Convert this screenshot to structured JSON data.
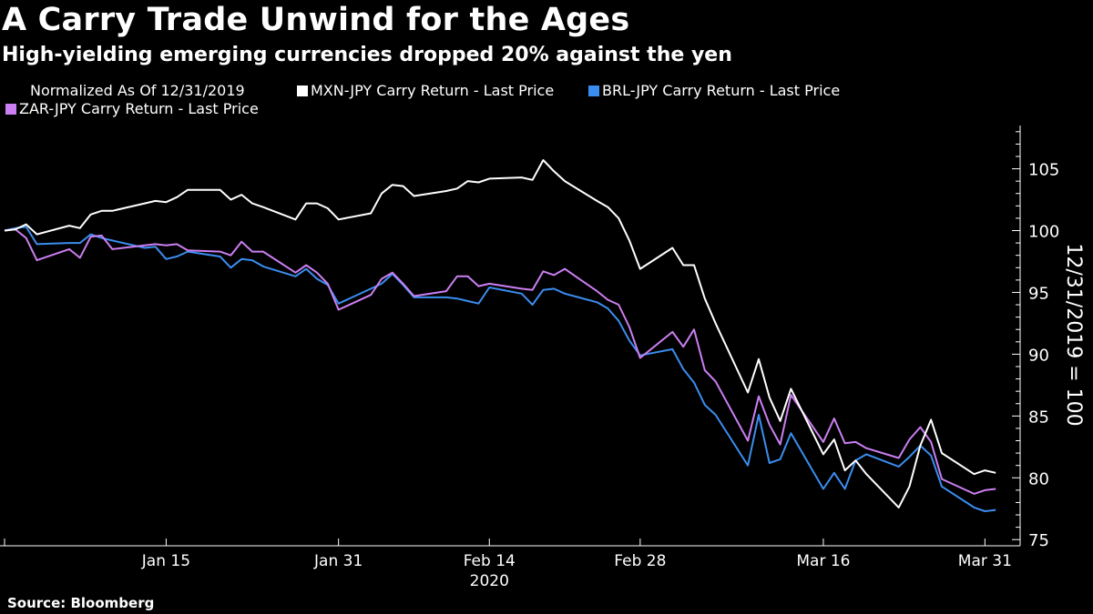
{
  "title": "A Carry Trade Unwind for the Ages",
  "subtitle": "High-yielding emerging currencies dropped 20% against the yen",
  "legend": {
    "note": "Normalized As Of 12/31/2019",
    "items": [
      {
        "label": "MXN-JPY Carry Return - Last Price",
        "color": "#ffffff"
      },
      {
        "label": "BRL-JPY Carry Return - Last Price",
        "color": "#3b8ef0"
      },
      {
        "label": "ZAR-JPY Carry Return - Last Price",
        "color": "#cc7ff2"
      }
    ]
  },
  "source": "Source: Bloomberg",
  "chart_data": {
    "type": "line",
    "x_tick_labels": [
      "Jan 15",
      "Jan 31",
      "Feb 14",
      "Feb 28",
      "Mar 16",
      "Mar 31"
    ],
    "x_tick_dates": [
      "2020-01-15",
      "2020-01-31",
      "2020-02-14",
      "2020-02-28",
      "2020-03-16",
      "2020-03-31"
    ],
    "x_year_label": "2020",
    "x_range": [
      "2019-12-31",
      "2020-04-02"
    ],
    "ylabel": "12/31/2019 = 100",
    "y_axis_side": "right",
    "ylim": [
      74.5,
      108.5
    ],
    "y_ticks": [
      75,
      80,
      85,
      90,
      95,
      100,
      105
    ],
    "grid": false,
    "legend_position": "top-left",
    "series": [
      {
        "name": "MXN-JPY Carry Return - Last Price",
        "color": "#ffffff",
        "points": [
          [
            "2019-12-31",
            100.0
          ],
          [
            "2020-01-01",
            100.1
          ],
          [
            "2020-01-02",
            100.5
          ],
          [
            "2020-01-03",
            99.7
          ],
          [
            "2020-01-06",
            100.4
          ],
          [
            "2020-01-07",
            100.2
          ],
          [
            "2020-01-08",
            101.3
          ],
          [
            "2020-01-09",
            101.6
          ],
          [
            "2020-01-10",
            101.6
          ],
          [
            "2020-01-13",
            102.2
          ],
          [
            "2020-01-14",
            102.4
          ],
          [
            "2020-01-15",
            102.3
          ],
          [
            "2020-01-16",
            102.7
          ],
          [
            "2020-01-17",
            103.3
          ],
          [
            "2020-01-20",
            103.3
          ],
          [
            "2020-01-21",
            102.5
          ],
          [
            "2020-01-22",
            102.9
          ],
          [
            "2020-01-23",
            102.2
          ],
          [
            "2020-01-24",
            101.9
          ],
          [
            "2020-01-27",
            100.9
          ],
          [
            "2020-01-28",
            102.2
          ],
          [
            "2020-01-29",
            102.2
          ],
          [
            "2020-01-30",
            101.8
          ],
          [
            "2020-01-31",
            100.9
          ],
          [
            "2020-02-03",
            101.4
          ],
          [
            "2020-02-04",
            103.0
          ],
          [
            "2020-02-05",
            103.7
          ],
          [
            "2020-02-06",
            103.6
          ],
          [
            "2020-02-07",
            102.8
          ],
          [
            "2020-02-10",
            103.2
          ],
          [
            "2020-02-11",
            103.4
          ],
          [
            "2020-02-12",
            104.0
          ],
          [
            "2020-02-13",
            103.9
          ],
          [
            "2020-02-14",
            104.2
          ],
          [
            "2020-02-17",
            104.3
          ],
          [
            "2020-02-18",
            104.1
          ],
          [
            "2020-02-19",
            105.7
          ],
          [
            "2020-02-20",
            104.8
          ],
          [
            "2020-02-21",
            104.0
          ],
          [
            "2020-02-24",
            102.4
          ],
          [
            "2020-02-25",
            101.9
          ],
          [
            "2020-02-26",
            101.0
          ],
          [
            "2020-02-27",
            99.2
          ],
          [
            "2020-02-28",
            96.9
          ],
          [
            "2020-03-02",
            98.6
          ],
          [
            "2020-03-03",
            97.2
          ],
          [
            "2020-03-04",
            97.2
          ],
          [
            "2020-03-05",
            94.5
          ],
          [
            "2020-03-06",
            92.5
          ],
          [
            "2020-03-09",
            86.9
          ],
          [
            "2020-03-10",
            89.6
          ],
          [
            "2020-03-11",
            86.5
          ],
          [
            "2020-03-12",
            84.6
          ],
          [
            "2020-03-13",
            87.2
          ],
          [
            "2020-03-16",
            81.9
          ],
          [
            "2020-03-17",
            83.1
          ],
          [
            "2020-03-18",
            80.6
          ],
          [
            "2020-03-19",
            81.4
          ],
          [
            "2020-03-20",
            80.3
          ],
          [
            "2020-03-23",
            77.6
          ],
          [
            "2020-03-24",
            79.3
          ],
          [
            "2020-03-25",
            82.6
          ],
          [
            "2020-03-26",
            84.7
          ],
          [
            "2020-03-27",
            82.0
          ],
          [
            "2020-03-30",
            80.3
          ],
          [
            "2020-03-31",
            80.6
          ],
          [
            "2020-04-01",
            80.4
          ]
        ]
      },
      {
        "name": "BRL-JPY Carry Return - Last Price",
        "color": "#3b8ef0",
        "points": [
          [
            "2019-12-31",
            100.0
          ],
          [
            "2020-01-01",
            100.2
          ],
          [
            "2020-01-02",
            100.3
          ],
          [
            "2020-01-03",
            98.9
          ],
          [
            "2020-01-06",
            99.0
          ],
          [
            "2020-01-07",
            99.0
          ],
          [
            "2020-01-08",
            99.7
          ],
          [
            "2020-01-09",
            99.4
          ],
          [
            "2020-01-10",
            99.2
          ],
          [
            "2020-01-13",
            98.6
          ],
          [
            "2020-01-14",
            98.7
          ],
          [
            "2020-01-15",
            97.7
          ],
          [
            "2020-01-16",
            97.9
          ],
          [
            "2020-01-17",
            98.3
          ],
          [
            "2020-01-20",
            97.9
          ],
          [
            "2020-01-21",
            97.0
          ],
          [
            "2020-01-22",
            97.7
          ],
          [
            "2020-01-23",
            97.6
          ],
          [
            "2020-01-24",
            97.1
          ],
          [
            "2020-01-27",
            96.3
          ],
          [
            "2020-01-28",
            96.9
          ],
          [
            "2020-01-29",
            96.1
          ],
          [
            "2020-01-30",
            95.6
          ],
          [
            "2020-01-31",
            94.1
          ],
          [
            "2020-02-03",
            95.3
          ],
          [
            "2020-02-04",
            95.7
          ],
          [
            "2020-02-05",
            96.5
          ],
          [
            "2020-02-06",
            95.6
          ],
          [
            "2020-02-07",
            94.6
          ],
          [
            "2020-02-10",
            94.6
          ],
          [
            "2020-02-11",
            94.5
          ],
          [
            "2020-02-12",
            94.3
          ],
          [
            "2020-02-13",
            94.1
          ],
          [
            "2020-02-14",
            95.4
          ],
          [
            "2020-02-17",
            94.9
          ],
          [
            "2020-02-18",
            94.0
          ],
          [
            "2020-02-19",
            95.2
          ],
          [
            "2020-02-20",
            95.3
          ],
          [
            "2020-02-21",
            94.9
          ],
          [
            "2020-02-24",
            94.2
          ],
          [
            "2020-02-25",
            93.7
          ],
          [
            "2020-02-26",
            92.7
          ],
          [
            "2020-02-27",
            91.1
          ],
          [
            "2020-02-28",
            89.9
          ],
          [
            "2020-03-02",
            90.4
          ],
          [
            "2020-03-03",
            88.8
          ],
          [
            "2020-03-04",
            87.7
          ],
          [
            "2020-03-05",
            85.9
          ],
          [
            "2020-03-06",
            85.1
          ],
          [
            "2020-03-09",
            81.0
          ],
          [
            "2020-03-10",
            85.1
          ],
          [
            "2020-03-11",
            81.2
          ],
          [
            "2020-03-12",
            81.5
          ],
          [
            "2020-03-13",
            83.6
          ],
          [
            "2020-03-16",
            79.1
          ],
          [
            "2020-03-17",
            80.4
          ],
          [
            "2020-03-18",
            79.1
          ],
          [
            "2020-03-19",
            81.4
          ],
          [
            "2020-03-20",
            81.9
          ],
          [
            "2020-03-23",
            80.9
          ],
          [
            "2020-03-24",
            81.7
          ],
          [
            "2020-03-25",
            82.6
          ],
          [
            "2020-03-26",
            81.8
          ],
          [
            "2020-03-27",
            79.3
          ],
          [
            "2020-03-30",
            77.6
          ],
          [
            "2020-03-31",
            77.3
          ],
          [
            "2020-04-01",
            77.4
          ]
        ]
      },
      {
        "name": "ZAR-JPY Carry Return - Last Price",
        "color": "#cc7ff2",
        "points": [
          [
            "2019-12-31",
            100.0
          ],
          [
            "2020-01-01",
            100.1
          ],
          [
            "2020-01-02",
            99.4
          ],
          [
            "2020-01-03",
            97.6
          ],
          [
            "2020-01-06",
            98.5
          ],
          [
            "2020-01-07",
            97.8
          ],
          [
            "2020-01-08",
            99.5
          ],
          [
            "2020-01-09",
            99.6
          ],
          [
            "2020-01-10",
            98.5
          ],
          [
            "2020-01-13",
            98.8
          ],
          [
            "2020-01-14",
            98.9
          ],
          [
            "2020-01-15",
            98.8
          ],
          [
            "2020-01-16",
            98.9
          ],
          [
            "2020-01-17",
            98.4
          ],
          [
            "2020-01-20",
            98.3
          ],
          [
            "2020-01-21",
            98.0
          ],
          [
            "2020-01-22",
            99.1
          ],
          [
            "2020-01-23",
            98.3
          ],
          [
            "2020-01-24",
            98.3
          ],
          [
            "2020-01-27",
            96.6
          ],
          [
            "2020-01-28",
            97.2
          ],
          [
            "2020-01-29",
            96.6
          ],
          [
            "2020-01-30",
            95.7
          ],
          [
            "2020-01-31",
            93.6
          ],
          [
            "2020-02-03",
            94.8
          ],
          [
            "2020-02-04",
            96.1
          ],
          [
            "2020-02-05",
            96.6
          ],
          [
            "2020-02-06",
            95.7
          ],
          [
            "2020-02-07",
            94.7
          ],
          [
            "2020-02-10",
            95.1
          ],
          [
            "2020-02-11",
            96.3
          ],
          [
            "2020-02-12",
            96.3
          ],
          [
            "2020-02-13",
            95.5
          ],
          [
            "2020-02-14",
            95.7
          ],
          [
            "2020-02-17",
            95.3
          ],
          [
            "2020-02-18",
            95.2
          ],
          [
            "2020-02-19",
            96.7
          ],
          [
            "2020-02-20",
            96.4
          ],
          [
            "2020-02-21",
            96.9
          ],
          [
            "2020-02-24",
            95.1
          ],
          [
            "2020-02-25",
            94.4
          ],
          [
            "2020-02-26",
            94.0
          ],
          [
            "2020-02-27",
            92.2
          ],
          [
            "2020-02-28",
            89.7
          ],
          [
            "2020-03-02",
            91.8
          ],
          [
            "2020-03-03",
            90.6
          ],
          [
            "2020-03-04",
            92.0
          ],
          [
            "2020-03-05",
            88.7
          ],
          [
            "2020-03-06",
            87.8
          ],
          [
            "2020-03-09",
            83.0
          ],
          [
            "2020-03-10",
            86.6
          ],
          [
            "2020-03-11",
            84.3
          ],
          [
            "2020-03-12",
            82.7
          ],
          [
            "2020-03-13",
            86.7
          ],
          [
            "2020-03-16",
            82.9
          ],
          [
            "2020-03-17",
            84.8
          ],
          [
            "2020-03-18",
            82.8
          ],
          [
            "2020-03-19",
            82.9
          ],
          [
            "2020-03-20",
            82.4
          ],
          [
            "2020-03-23",
            81.6
          ],
          [
            "2020-03-24",
            83.1
          ],
          [
            "2020-03-25",
            84.1
          ],
          [
            "2020-03-26",
            82.9
          ],
          [
            "2020-03-27",
            79.9
          ],
          [
            "2020-03-30",
            78.7
          ],
          [
            "2020-03-31",
            79.0
          ],
          [
            "2020-04-01",
            79.1
          ]
        ]
      }
    ]
  }
}
